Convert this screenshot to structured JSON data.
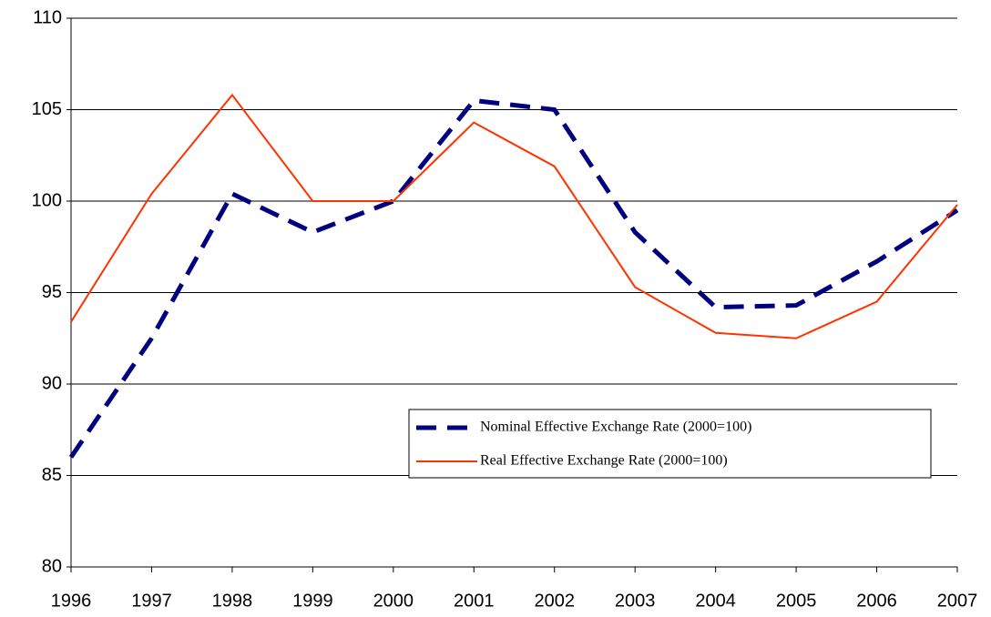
{
  "chart_data": {
    "type": "line",
    "x": [
      1996,
      1997,
      1998,
      1999,
      2000,
      2001,
      2002,
      2003,
      2004,
      2005,
      2006,
      2007
    ],
    "series": [
      {
        "name": "Nominal Effective Exchange Rate (2000=100)",
        "color": "#000080",
        "dashed": true,
        "values": [
          86.0,
          92.5,
          100.4,
          98.3,
          100.0,
          105.5,
          105.0,
          98.3,
          94.2,
          94.3,
          96.7,
          99.5
        ]
      },
      {
        "name": "Real Effective Exchange Rate (2000=100)",
        "color": "#ff3300",
        "dashed": false,
        "values": [
          93.4,
          100.4,
          105.8,
          100.0,
          100.0,
          104.3,
          101.9,
          95.3,
          92.8,
          92.5,
          94.5,
          99.8
        ]
      }
    ],
    "xlim": [
      1996,
      2007
    ],
    "xticks": [
      1996,
      1997,
      1998,
      1999,
      2000,
      2001,
      2002,
      2003,
      2004,
      2005,
      2006,
      2007
    ],
    "ylim": [
      80,
      110
    ],
    "yticks": [
      80,
      85,
      90,
      95,
      100,
      105,
      110
    ],
    "grid": true,
    "legend_position": "lower right"
  }
}
